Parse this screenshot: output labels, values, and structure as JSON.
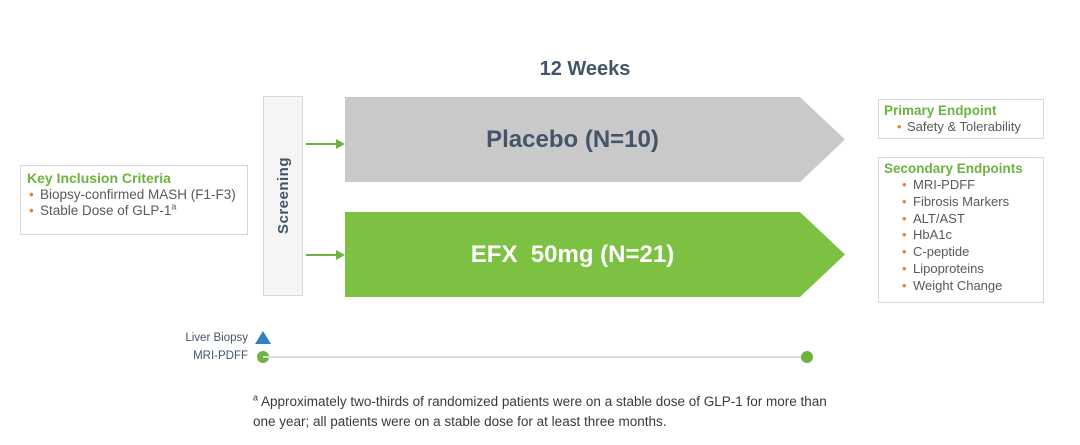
{
  "header": {
    "duration": "12 Weeks"
  },
  "inclusion": {
    "title": "Key Inclusion Criteria",
    "items": [
      {
        "text": "Biopsy-confirmed MASH (F1-F3)"
      },
      {
        "text": "Stable Dose of GLP-1",
        "sup": "a"
      }
    ]
  },
  "screening": {
    "label": "Screening"
  },
  "arms": [
    {
      "label": "Placebo (N=10)",
      "color": "#C9C9C9"
    },
    {
      "label": "EFX  50mg (N=21)",
      "color": "#7CC142"
    }
  ],
  "endpoints": {
    "primary": {
      "title": "Primary Endpoint",
      "items": [
        {
          "text": "Safety & Tolerability"
        }
      ]
    },
    "secondary": {
      "title": "Secondary Endpoints",
      "items": [
        {
          "text": "MRI-PDFF"
        },
        {
          "text": "Fibrosis Markers"
        },
        {
          "text": "ALT/AST"
        },
        {
          "text": "HbA1c"
        },
        {
          "text": "C-peptide"
        },
        {
          "text": "Lipoproteins"
        },
        {
          "text": "Weight Change"
        }
      ]
    }
  },
  "timeline": {
    "rows": [
      {
        "label": "Liver Biopsy",
        "marker": "triangle-icon"
      },
      {
        "label": "MRI-PDFF",
        "marker": "circle-icon"
      }
    ]
  },
  "footnote": {
    "marker": "a",
    "lines": [
      "Approximately two-thirds of randomized patients were on a stable dose of GLP-1 for more than",
      "one year; all patients were on a stable dose for at least three months."
    ]
  },
  "colors": {
    "arrow_green": "#7CC142",
    "connector_green": "#6DB33E",
    "title_green": "#6CB33F",
    "slate_blue": "#44546A",
    "arrow_gray": "#C9C9C9",
    "bullet_orange": "#ED7D31",
    "triangle_blue": "#2E80BF",
    "timeline_gray": "#DCDCDC"
  }
}
